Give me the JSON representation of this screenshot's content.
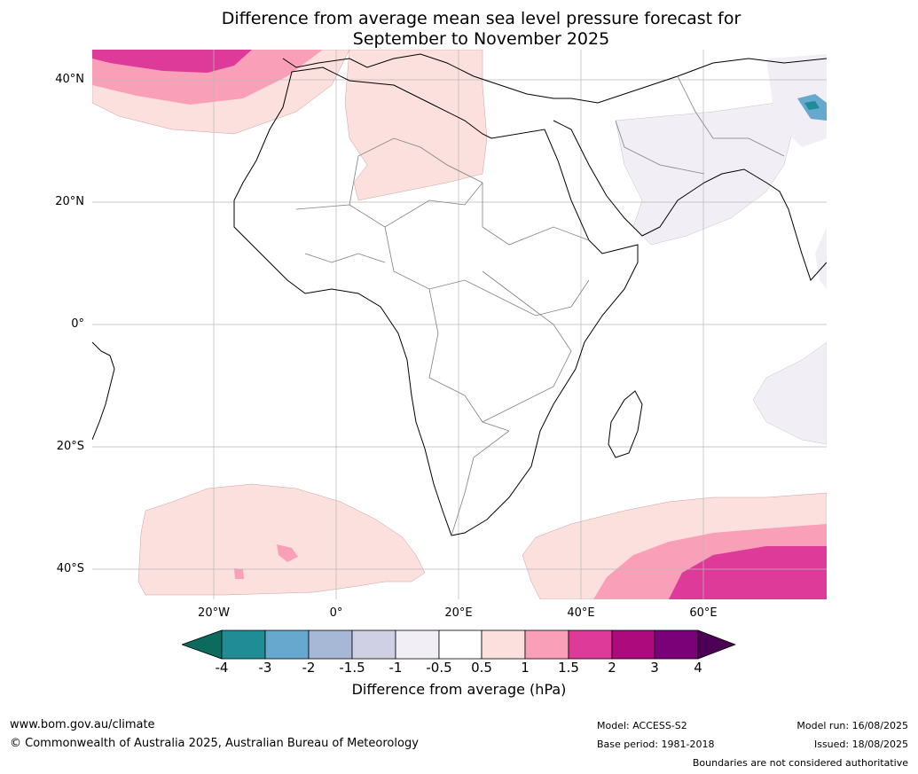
{
  "title": {
    "line1": "Difference from average mean sea level pressure forecast for",
    "line2": "September to November 2025"
  },
  "axes": {
    "lat_labels": [
      "40°N",
      "20°N",
      "0°",
      "20°S",
      "40°S"
    ],
    "lon_labels": [
      "20°W",
      "0°",
      "20°E",
      "40°E",
      "60°E"
    ]
  },
  "colorbar": {
    "label": "Difference from average (hPa)",
    "ticks": [
      "-4",
      "-3",
      "-2",
      "-1.5",
      "-1",
      "-0.5",
      "0.5",
      "1",
      "1.5",
      "2",
      "3",
      "4"
    ],
    "colors": {
      "lt_minus4": "#0c6b5c",
      "m4_m3": "#1f8c96",
      "m3_m2": "#66a8ce",
      "m2_m15": "#a6b8d6",
      "m15_m1": "#cfd0e3",
      "m1_m05": "#f1eef5",
      "m05_05": "#ffffff",
      "p05_1": "#fce0de",
      "p1_15": "#f9a0b8",
      "p15_2": "#dd3a9a",
      "p2_3": "#ad0a7e",
      "p3_4": "#7a0177",
      "gt_4": "#4b0055"
    }
  },
  "footer": {
    "url": "www.bom.gov.au/climate",
    "copyright": "© Commonwealth of Australia 2025, Australian Bureau of Meteorology",
    "model": "Model: ACCESS-S2",
    "base_period": "Base period: 1981-2018",
    "model_run": "Model run: 16/08/2025",
    "issued": "Issued: 18/08/2025",
    "disclaimer": "Boundaries are not considered authoritative"
  }
}
